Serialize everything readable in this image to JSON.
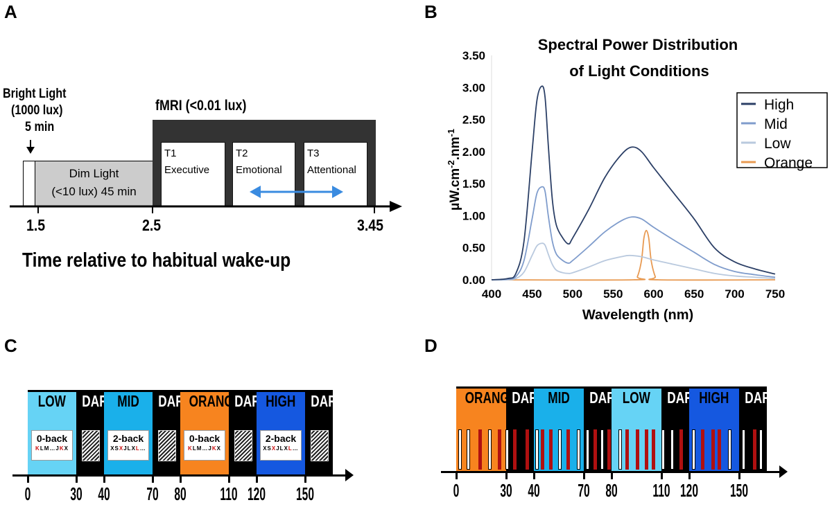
{
  "panels": {
    "a": "A",
    "b": "B",
    "c": "C",
    "d": "D"
  },
  "panel_a": {
    "bright_light_line1": "Bright Light",
    "bright_light_line2": "(1000 lux)",
    "bright_duration": "5 min",
    "dim_line1": "Dim Light",
    "dim_line2": "(<10 lux) 45 min",
    "fmri_label": "fMRI (<0.01 lux)",
    "tasks": [
      {
        "id": "T1",
        "name": "Executive"
      },
      {
        "id": "T2",
        "name": "Emotional"
      },
      {
        "id": "T3",
        "name": "Attentional"
      }
    ],
    "ticks": [
      "1.5",
      "2.5",
      "3.45"
    ],
    "xlabel": "Time relative to habitual wake-up",
    "colors": {
      "dim": "#cccccc",
      "fmri": "#333333",
      "swap_arrow": "#3a8be0"
    },
    "icons": [
      "down-arrow-icon",
      "double-arrow-icon"
    ]
  },
  "chart_data": {
    "type": "line",
    "title": "Spectral Power Distribution",
    "title_line2": "of Light Conditions",
    "xlabel": "Wavelength (nm)",
    "ylabel": "μW.cm-2.nm-1",
    "xlim": [
      400,
      750
    ],
    "ylim": [
      0,
      3.5
    ],
    "xticks": [
      "400",
      "450",
      "500",
      "550",
      "600",
      "650",
      "700",
      "750"
    ],
    "yticks": [
      "0.00",
      "0.50",
      "1.00",
      "1.50",
      "2.00",
      "2.50",
      "3.00",
      "3.50"
    ],
    "grid": false,
    "legend_placement": "top-right",
    "series": [
      {
        "name": "High",
        "color": "#2b3f66",
        "x": [
          400,
          420,
          430,
          440,
          450,
          456,
          462,
          466,
          470,
          475,
          480,
          488,
          495,
          500,
          520,
          540,
          560,
          573,
          585,
          600,
          625,
          650,
          675,
          700,
          725,
          750
        ],
        "y": [
          0,
          0.02,
          0.1,
          0.6,
          2.0,
          2.8,
          3.02,
          2.85,
          2.1,
          1.25,
          0.85,
          0.65,
          0.56,
          0.65,
          1.1,
          1.6,
          1.95,
          2.07,
          2.0,
          1.75,
          1.35,
          0.95,
          0.5,
          0.28,
          0.17,
          0.09
        ]
      },
      {
        "name": "Mid",
        "color": "#7f9ccc",
        "x": [
          400,
          420,
          430,
          440,
          450,
          456,
          462,
          466,
          470,
          475,
          480,
          488,
          495,
          500,
          520,
          540,
          560,
          573,
          585,
          600,
          625,
          650,
          675,
          700,
          725,
          750
        ],
        "y": [
          0,
          0.01,
          0.05,
          0.3,
          0.95,
          1.35,
          1.45,
          1.38,
          1.0,
          0.6,
          0.4,
          0.3,
          0.26,
          0.3,
          0.52,
          0.75,
          0.92,
          0.98,
          0.95,
          0.82,
          0.62,
          0.43,
          0.24,
          0.13,
          0.08,
          0.04
        ]
      },
      {
        "name": "Low",
        "color": "#b9c9de",
        "x": [
          400,
          420,
          430,
          440,
          450,
          456,
          462,
          466,
          470,
          475,
          480,
          488,
          495,
          500,
          520,
          540,
          560,
          570,
          585,
          600,
          625,
          650,
          675,
          700,
          725,
          750
        ],
        "y": [
          0,
          0,
          0.02,
          0.12,
          0.38,
          0.53,
          0.57,
          0.54,
          0.4,
          0.24,
          0.15,
          0.11,
          0.1,
          0.11,
          0.2,
          0.3,
          0.36,
          0.38,
          0.36,
          0.31,
          0.24,
          0.17,
          0.1,
          0.06,
          0.04,
          0.02
        ]
      },
      {
        "name": "Orange",
        "color": "#e89a52",
        "x": [
          400,
          575,
          580,
          585,
          588,
          591,
          594,
          597,
          602,
          606,
          750
        ],
        "y": [
          0,
          0,
          0.05,
          0.3,
          0.65,
          0.77,
          0.65,
          0.3,
          0.05,
          0,
          0
        ]
      }
    ]
  },
  "panel_c": {
    "blocks": [
      {
        "label": "LOW",
        "kind": "light",
        "color": "#66d3f5",
        "task": "0-back",
        "letters": [
          "K",
          "L",
          "M",
          "…",
          "J",
          "K",
          "X"
        ],
        "targets": [
          0,
          5
        ]
      },
      {
        "label": "DARK",
        "kind": "dark",
        "color": "#000000"
      },
      {
        "label": "MID",
        "kind": "light",
        "color": "#1ab0ea",
        "task": "2-back",
        "letters": [
          "X",
          "S",
          "X",
          "J",
          "L",
          "X",
          "L",
          "…"
        ],
        "targets": [
          2,
          6
        ]
      },
      {
        "label": "DARK",
        "kind": "dark",
        "color": "#000000"
      },
      {
        "label": "ORANGE",
        "kind": "light",
        "color": "#f7841f",
        "task": "0-back",
        "letters": [
          "K",
          "L",
          "M",
          "…",
          "J",
          "K",
          "X"
        ],
        "targets": [
          0,
          5
        ]
      },
      {
        "label": "DARK",
        "kind": "dark",
        "color": "#000000"
      },
      {
        "label": "HIGH",
        "kind": "light",
        "color": "#1558e0",
        "task": "2-back",
        "letters": [
          "X",
          "S",
          "X",
          "J",
          "L",
          "X",
          "L",
          "…"
        ],
        "targets": [
          2,
          6
        ]
      },
      {
        "label": "DARK",
        "kind": "dark",
        "color": "#000000"
      }
    ],
    "ticks": [
      "0",
      "30",
      "40",
      "70",
      "80",
      "110",
      "120",
      "150"
    ],
    "target_color": "#cc1111"
  },
  "panel_d": {
    "blocks": [
      {
        "label": "ORANGE",
        "kind": "light",
        "color": "#f7841f"
      },
      {
        "label": "DARK",
        "kind": "dark",
        "color": "#000000"
      },
      {
        "label": "MID",
        "kind": "light",
        "color": "#1ab0ea"
      },
      {
        "label": "DARK",
        "kind": "dark",
        "color": "#000000"
      },
      {
        "label": "LOW",
        "kind": "light",
        "color": "#66d3f5"
      },
      {
        "label": "DARK",
        "kind": "dark",
        "color": "#000000"
      },
      {
        "label": "HIGH",
        "kind": "light",
        "color": "#1558e0"
      },
      {
        "label": "DARK",
        "kind": "dark",
        "color": "#000000"
      }
    ],
    "ticks": [
      "0",
      "30",
      "40",
      "70",
      "80",
      "110",
      "120",
      "150"
    ],
    "stimuli": [
      {
        "t": 2,
        "c": "white"
      },
      {
        "t": 7,
        "c": "white"
      },
      {
        "t": 14,
        "c": "red"
      },
      {
        "t": 20,
        "c": "white"
      },
      {
        "t": 26,
        "c": "red"
      },
      {
        "t": 30.3,
        "c": "white"
      },
      {
        "t": 33,
        "c": "red"
      },
      {
        "t": 37.5,
        "c": "red"
      },
      {
        "t": 41.7,
        "c": "white"
      },
      {
        "t": 45.2,
        "c": "red"
      },
      {
        "t": 49.8,
        "c": "red"
      },
      {
        "t": 55.6,
        "c": "white"
      },
      {
        "t": 60.5,
        "c": "red"
      },
      {
        "t": 66.8,
        "c": "white"
      },
      {
        "t": 71.2,
        "c": "white"
      },
      {
        "t": 73.9,
        "c": "red"
      },
      {
        "t": 76.4,
        "c": "white"
      },
      {
        "t": 78.9,
        "c": "red"
      },
      {
        "t": 84.9,
        "c": "white"
      },
      {
        "t": 89.3,
        "c": "red"
      },
      {
        "t": 95.3,
        "c": "red"
      },
      {
        "t": 100.9,
        "c": "red"
      },
      {
        "t": 105.1,
        "c": "red"
      },
      {
        "t": 110.4,
        "c": "white"
      },
      {
        "t": 113.8,
        "c": "white"
      },
      {
        "t": 116.9,
        "c": "red"
      },
      {
        "t": 122.5,
        "c": "white"
      },
      {
        "t": 128,
        "c": "red"
      },
      {
        "t": 134,
        "c": "red"
      },
      {
        "t": 138,
        "c": "red"
      },
      {
        "t": 144,
        "c": "white"
      },
      {
        "t": 151.4,
        "c": "white"
      },
      {
        "t": 155.4,
        "c": "red"
      },
      {
        "t": 157.8,
        "c": "white"
      }
    ],
    "stim_colors": {
      "white": "#ffffff",
      "red": "#b01010"
    }
  }
}
